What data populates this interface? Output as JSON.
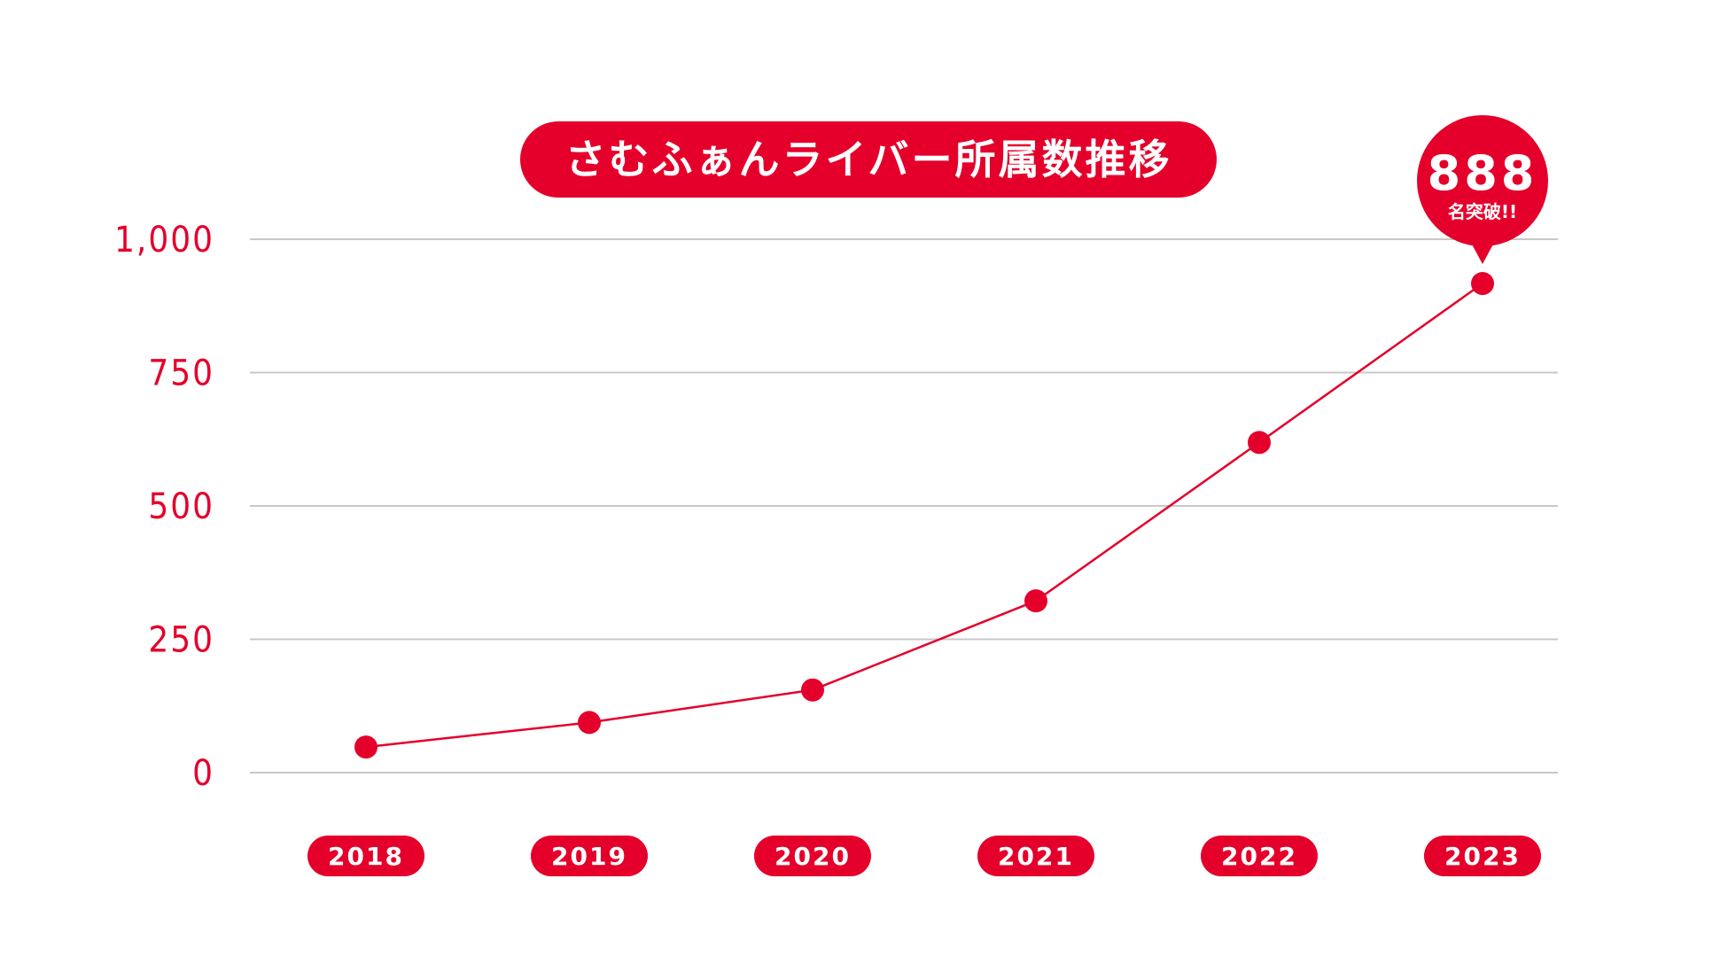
{
  "chart_data": {
    "type": "line",
    "title": "さむふぁんライバー所属数推移",
    "categories": [
      "2018",
      "2019",
      "2020",
      "2021",
      "2022",
      "2023"
    ],
    "values": [
      48,
      94,
      155,
      322,
      619,
      917
    ],
    "ylim": [
      0,
      1000
    ],
    "yticks": [
      0,
      250,
      500,
      750,
      1000
    ],
    "ytick_labels": [
      "0",
      "250",
      "500",
      "750",
      "1,000"
    ],
    "grid": true,
    "callout": {
      "value": "888",
      "text": "名突破!!"
    },
    "colors": {
      "accent": "#e4002b",
      "grid": "#c8c8c8"
    }
  }
}
